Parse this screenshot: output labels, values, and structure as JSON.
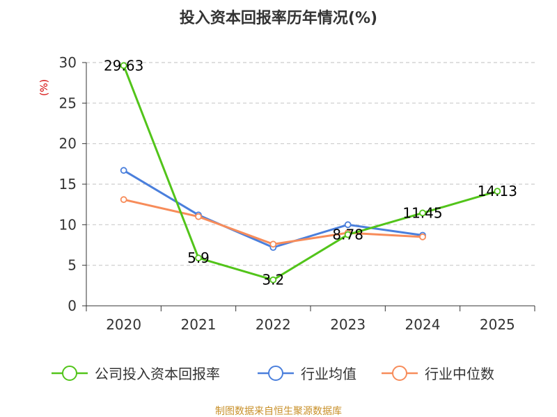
{
  "chart_data": {
    "type": "line",
    "title": "投入资本回报率历年情况(%)",
    "ylabel": "(%)",
    "xlabel": "",
    "categories": [
      "2020",
      "2021",
      "2022",
      "2023",
      "2024",
      "2025"
    ],
    "ylim": [
      0,
      30
    ],
    "yticks": [
      0,
      5,
      10,
      15,
      20,
      25,
      30
    ],
    "grid": true,
    "legend_position": "bottom",
    "series": [
      {
        "name": "公司投入资本回报率",
        "color": "#52c41a",
        "values": [
          29.63,
          5.9,
          3.2,
          8.78,
          11.45,
          14.13
        ],
        "labels": [
          "29.63",
          "5.9",
          "3.2",
          "8.78",
          "11.45",
          "14.13"
        ]
      },
      {
        "name": "行业均值",
        "color": "#4a7fdc",
        "values": [
          16.7,
          11.2,
          7.2,
          10.0,
          8.7,
          null
        ]
      },
      {
        "name": "行业中位数",
        "color": "#f78c5a",
        "values": [
          13.1,
          11.0,
          7.6,
          9.0,
          8.5,
          null
        ]
      }
    ]
  },
  "source": "制图数据来自恒生聚源数据库"
}
